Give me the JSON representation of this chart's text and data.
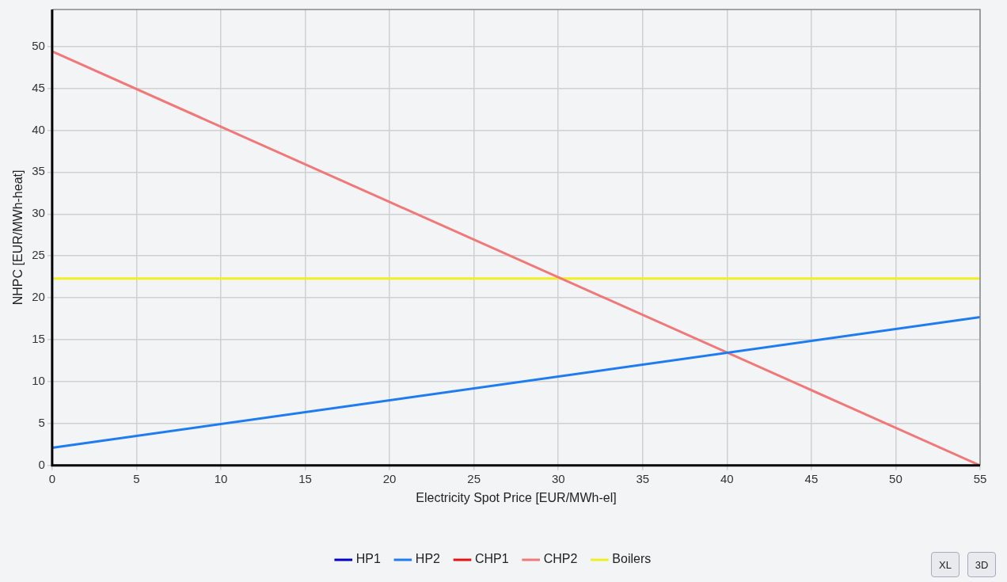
{
  "chart_data": {
    "type": "line",
    "xlabel": "Electricity Spot Price [EUR/MWh-el]",
    "ylabel": "NHPC [EUR/MWh-heat]",
    "x": [
      0,
      55
    ],
    "xlim": [
      0,
      55
    ],
    "xticks": [
      0,
      5,
      10,
      15,
      20,
      25,
      30,
      35,
      40,
      45,
      50,
      55
    ],
    "ylim": [
      0,
      54.4
    ],
    "yticks": [
      0,
      5,
      10,
      15,
      20,
      25,
      30,
      35,
      40,
      45,
      50
    ],
    "series": [
      {
        "name": "HP1",
        "color": "#0000cc",
        "values": [
          null,
          null
        ]
      },
      {
        "name": "HP2",
        "color": "#1e7cf0",
        "values": [
          2.1,
          17.7
        ]
      },
      {
        "name": "CHP1",
        "color": "#e81010",
        "values": [
          null,
          null
        ]
      },
      {
        "name": "CHP2",
        "color": "#f07878",
        "values": [
          49.4,
          0
        ]
      },
      {
        "name": "Boilers",
        "color": "#f0f020",
        "values": [
          22.3,
          22.3
        ]
      }
    ],
    "grid": true,
    "legend": "bottom",
    "marker": "none",
    "line_style": "solid",
    "annotations": [
      "XL",
      "3D"
    ]
  }
}
